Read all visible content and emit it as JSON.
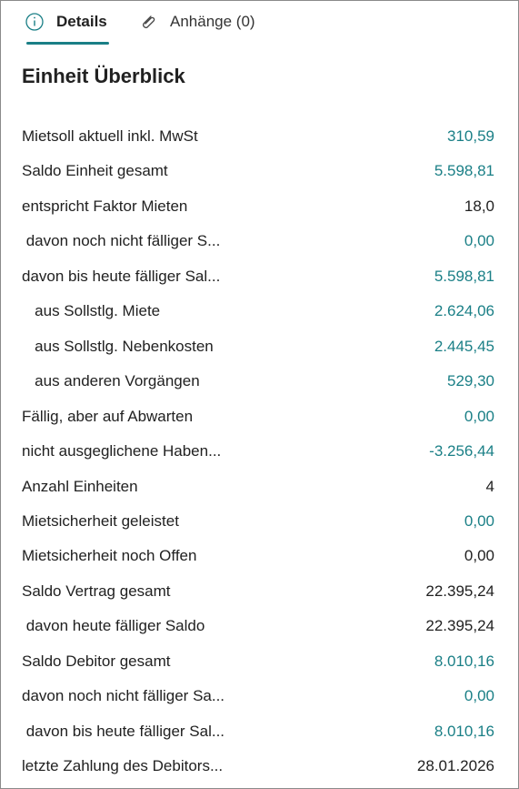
{
  "tabs": [
    "Details",
    "Anhänge (0)"
  ],
  "title": "Einheit Überblick",
  "rows": [
    {
      "label": "Mietsoll aktuell inkl. MwSt",
      "value": "310,59",
      "color": "#1a7f86"
    },
    {
      "label": "Saldo Einheit gesamt",
      "value": "5.598,81",
      "color": "#1a7f86"
    },
    {
      "label": "entspricht Faktor Mieten",
      "value": "18,0",
      "color": "#212121"
    },
    {
      "label": " davon noch nicht fälliger S...",
      "value": "0,00",
      "color": "#1a7f86"
    },
    {
      "label": "davon bis heute fälliger Sal...",
      "value": "5.598,81",
      "color": "#1a7f86"
    },
    {
      "label": "   aus Sollstlg. Miete",
      "value": "2.624,06",
      "color": "#1a7f86"
    },
    {
      "label": "   aus Sollstlg. Nebenkosten",
      "value": "2.445,45",
      "color": "#1a7f86"
    },
    {
      "label": "   aus anderen Vorgängen",
      "value": "529,30",
      "color": "#1a7f86"
    },
    {
      "label": "Fällig, aber auf Abwarten",
      "value": "0,00",
      "color": "#1a7f86"
    },
    {
      "label": "nicht ausgeglichene Haben...",
      "value": "-3.256,44",
      "color": "#1a7f86"
    },
    {
      "label": "Anzahl Einheiten",
      "value": "4",
      "color": "#212121"
    },
    {
      "label": "Mietsicherheit geleistet",
      "value": "0,00",
      "color": "#1a7f86"
    },
    {
      "label": "Mietsicherheit noch Offen",
      "value": "0,00",
      "color": "#212121"
    },
    {
      "label": "Saldo Vertrag gesamt",
      "value": "22.395,24",
      "color": "#212121"
    },
    {
      "label": " davon heute fälliger Saldo",
      "value": "22.395,24",
      "color": "#212121"
    },
    {
      "label": "Saldo Debitor gesamt",
      "value": "8.010,16",
      "color": "#1a7f86"
    },
    {
      "label": "davon noch nicht fälliger Sa...",
      "value": "0,00",
      "color": "#1a7f86"
    },
    {
      "label": " davon bis heute fälliger Sal...",
      "value": "8.010,16",
      "color": "#1a7f86"
    },
    {
      "label": "letzte Zahlung des Debitors...",
      "value": "28.01.2026",
      "color": "#212121"
    }
  ]
}
